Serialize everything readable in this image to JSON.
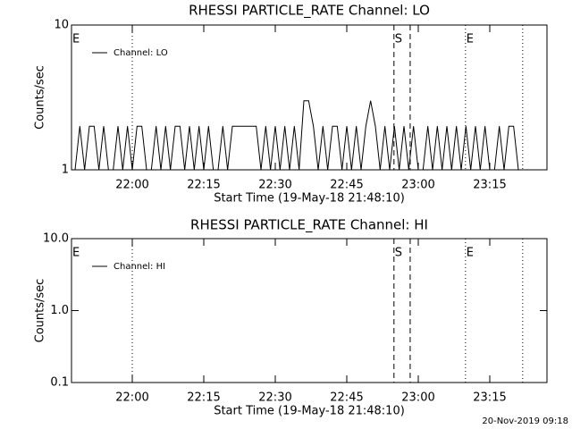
{
  "chart_data": [
    {
      "type": "line",
      "title": "RHESSI PARTICLE_RATE Channel: LO",
      "xlabel": "Start Time (19-May-18 21:48:10)",
      "ylabel": "Counts/sec",
      "log_y": true,
      "xlim": [
        1307.25,
        1407
      ],
      "ylim": [
        1,
        10
      ],
      "yticks": [
        1,
        10
      ],
      "xticks": [
        {
          "value": 1320,
          "label": "22:00"
        },
        {
          "value": 1335,
          "label": "22:15"
        },
        {
          "value": 1350,
          "label": "22:30"
        },
        {
          "value": 1365,
          "label": "22:45"
        },
        {
          "value": 1380,
          "label": "23:00"
        },
        {
          "value": 1395,
          "label": "23:15"
        }
      ],
      "markers": [
        {
          "x": 1320,
          "style": "dotted"
        },
        {
          "x": 1374.9,
          "style": "dashed"
        },
        {
          "x": 1378.3,
          "style": "dashed"
        },
        {
          "x": 1389.9,
          "style": "dotted"
        },
        {
          "x": 1401.9,
          "style": "dotted"
        }
      ],
      "annotations": [
        {
          "text": "E",
          "x": 1307.25
        },
        {
          "text": "S",
          "x": 1374.9
        },
        {
          "text": "E",
          "x": 1389.9
        }
      ],
      "x": [
        1308,
        1309,
        1310,
        1311,
        1312,
        1313,
        1314,
        1315,
        1316,
        1317,
        1318,
        1319,
        1320,
        1321,
        1322,
        1323,
        1324,
        1325,
        1326,
        1327,
        1328,
        1329,
        1330,
        1331,
        1332,
        1333,
        1334,
        1335,
        1336,
        1337,
        1338,
        1339,
        1340,
        1341,
        1342,
        1343,
        1344,
        1345,
        1346,
        1347,
        1348,
        1349,
        1350,
        1351,
        1352,
        1353,
        1354,
        1355,
        1356,
        1357,
        1358,
        1359,
        1360,
        1361,
        1362,
        1363,
        1364,
        1365,
        1366,
        1367,
        1368,
        1369,
        1370,
        1371,
        1372,
        1373,
        1374,
        1375,
        1376,
        1377,
        1378,
        1379,
        1380,
        1381,
        1382,
        1383,
        1384,
        1385,
        1386,
        1387,
        1388,
        1389,
        1390,
        1391,
        1392,
        1393,
        1394,
        1395,
        1396,
        1397,
        1398,
        1399,
        1400,
        1401
      ],
      "series": [
        {
          "name": "Channel: LO",
          "color": "#000000",
          "values": [
            1,
            2,
            1,
            2,
            2,
            1,
            2,
            1,
            1,
            2,
            1,
            2,
            1,
            2,
            2,
            1,
            1,
            2,
            1,
            2,
            1,
            2,
            2,
            1,
            2,
            1,
            2,
            1,
            2,
            1,
            1,
            2,
            1,
            2,
            2,
            2,
            2,
            2,
            2,
            1,
            2,
            1,
            2,
            1,
            2,
            1,
            2,
            1,
            3,
            3,
            2,
            1,
            2,
            1,
            2,
            2,
            1,
            2,
            1,
            2,
            1,
            2,
            3,
            2,
            1,
            2,
            1,
            2,
            1,
            2,
            1,
            2,
            1,
            1,
            2,
            1,
            2,
            1,
            2,
            1,
            2,
            1,
            2,
            1,
            2,
            1,
            2,
            1,
            1,
            2,
            1,
            2,
            2,
            1
          ]
        }
      ]
    },
    {
      "type": "line",
      "title": "RHESSI PARTICLE_RATE Channel: HI",
      "xlabel": "Start Time (19-May-18 21:48:10)",
      "ylabel": "Counts/sec",
      "log_y": true,
      "xlim": [
        1307.25,
        1407
      ],
      "ylim": [
        0.1,
        10
      ],
      "yticks": [
        {
          "value": 0.1,
          "label": "0.1"
        },
        {
          "value": 1,
          "label": "1.0"
        },
        {
          "value": 10,
          "label": "10.0"
        }
      ],
      "xticks": [
        {
          "value": 1320,
          "label": "22:00"
        },
        {
          "value": 1335,
          "label": "22:15"
        },
        {
          "value": 1350,
          "label": "22:30"
        },
        {
          "value": 1365,
          "label": "22:45"
        },
        {
          "value": 1380,
          "label": "23:00"
        },
        {
          "value": 1395,
          "label": "23:15"
        }
      ],
      "markers": [
        {
          "x": 1320,
          "style": "dotted"
        },
        {
          "x": 1374.9,
          "style": "dashed"
        },
        {
          "x": 1378.3,
          "style": "dashed"
        },
        {
          "x": 1389.9,
          "style": "dotted"
        },
        {
          "x": 1401.9,
          "style": "dotted"
        }
      ],
      "annotations": [
        {
          "text": "E",
          "x": 1307.25
        },
        {
          "text": "S",
          "x": 1374.9
        },
        {
          "text": "E",
          "x": 1389.9
        }
      ],
      "x": [],
      "series": [
        {
          "name": "Channel: HI",
          "color": "#000000",
          "values": []
        }
      ]
    }
  ],
  "footer": "20-Nov-2019 09:18"
}
